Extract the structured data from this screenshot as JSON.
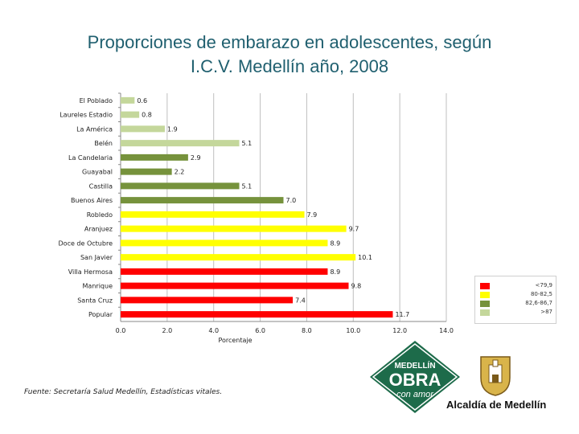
{
  "title_line1": "Proporciones de embarazo en adolescentes, según",
  "title_line2": "I.C.V. Medellín año, 2008",
  "footnote": "Fuente: Secretaría Salud Medellín, Estadísticas vitales.",
  "logo": {
    "line1": "MEDELLÍN",
    "line2": "OBRA",
    "line3": "con amor",
    "alcaldia": "Alcaldía de Medellín"
  },
  "legend": [
    {
      "label": "<79,9",
      "color": "#ff0000"
    },
    {
      "label": "80-82,5",
      "color": "#ffff00"
    },
    {
      "label": "82,6-86,7",
      "color": "#76923c"
    },
    {
      "label": ">87",
      "color": "#c4d79b"
    }
  ],
  "chart_data": {
    "type": "bar",
    "orientation": "horizontal",
    "title": "Proporciones de embarazo en adolescentes, según I.C.V. Medellín año, 2008",
    "xlabel": "Porcentaje",
    "ylabel": "",
    "xlim": [
      0,
      14
    ],
    "xticks": [
      "0.0",
      "2.0",
      "4.0",
      "6.0",
      "8.0",
      "10.0",
      "12.0",
      "14.0"
    ],
    "grid": true,
    "categories": [
      "El Poblado",
      "Laureles Estadio",
      "La América",
      "Belén",
      "La Candelaria",
      "Guayabal",
      "Castilla",
      "Buenos Aires",
      "Robledo",
      "Aranjuez",
      "Doce de Octubre",
      "San Javier",
      "Villa Hermosa",
      "Manrique",
      "Santa Cruz",
      "Popular"
    ],
    "values": [
      0.6,
      0.8,
      1.9,
      5.1,
      2.9,
      2.2,
      5.1,
      7.0,
      7.9,
      9.7,
      8.9,
      10.1,
      8.9,
      9.8,
      7.4,
      11.7
    ],
    "value_labels": [
      "0.6",
      "0.8",
      "1.9",
      "5.1",
      "2.9",
      "2.2",
      "5.1",
      "7.0",
      "7.9",
      "9.7",
      "8.9",
      "10.1",
      "8.9",
      "9.8",
      "7.4",
      "11.7"
    ],
    "colors": [
      "#c4d79b",
      "#c4d79b",
      "#c4d79b",
      "#c4d79b",
      "#76923c",
      "#76923c",
      "#76923c",
      "#76923c",
      "#ffff00",
      "#ffff00",
      "#ffff00",
      "#ffff00",
      "#ff0000",
      "#ff0000",
      "#ff0000",
      "#ff0000"
    ]
  }
}
